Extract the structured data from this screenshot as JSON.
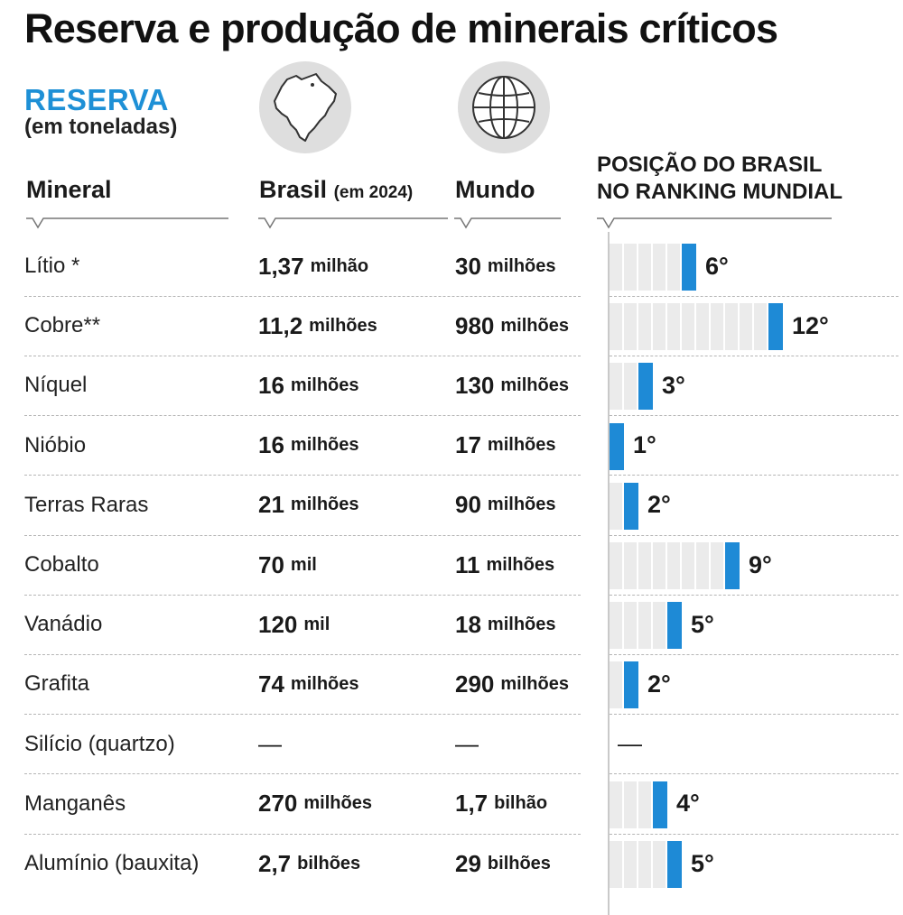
{
  "title": "Reserva e produção de minerais críticos",
  "section": {
    "label": "RESERVA",
    "sublabel": "(em toneladas)"
  },
  "icons": {
    "brasil": "brazil-map-icon",
    "mundo": "globe-icon"
  },
  "headers": {
    "mineral": "Mineral",
    "brasil": "Brasil",
    "brasil_note": "(em 2024)",
    "mundo": "Mundo",
    "rank_line1": "POSIÇÃO DO BRASIL",
    "rank_line2": "NO RANKING MUNDIAL"
  },
  "colors": {
    "accent": "#1e8ad6",
    "bar_bg": "#ebebeb"
  },
  "rows": [
    {
      "mineral": "Lítio *",
      "brasil_num": "1,37",
      "brasil_unit": "milhão",
      "mundo_num": "30",
      "mundo_unit": "milhões",
      "rank": 6,
      "rank_label": "6°"
    },
    {
      "mineral": "Cobre**",
      "brasil_num": "11,2",
      "brasil_unit": "milhões",
      "mundo_num": "980",
      "mundo_unit": "milhões",
      "rank": 12,
      "rank_label": "12°"
    },
    {
      "mineral": "Níquel",
      "brasil_num": "16",
      "brasil_unit": "milhões",
      "mundo_num": "130",
      "mundo_unit": "milhões",
      "rank": 3,
      "rank_label": "3°"
    },
    {
      "mineral": "Nióbio",
      "brasil_num": "16",
      "brasil_unit": "milhões",
      "mundo_num": "17",
      "mundo_unit": "milhões",
      "rank": 1,
      "rank_label": "1°"
    },
    {
      "mineral": "Terras Raras",
      "brasil_num": "21",
      "brasil_unit": "milhões",
      "mundo_num": "90",
      "mundo_unit": "milhões",
      "rank": 2,
      "rank_label": "2°"
    },
    {
      "mineral": "Cobalto",
      "brasil_num": "70",
      "brasil_unit": "mil",
      "mundo_num": "11",
      "mundo_unit": "milhões",
      "rank": 9,
      "rank_label": "9°"
    },
    {
      "mineral": "Vanádio",
      "brasil_num": "120",
      "brasil_unit": "mil",
      "mundo_num": "18",
      "mundo_unit": "milhões",
      "rank": 5,
      "rank_label": "5°"
    },
    {
      "mineral": "Grafita",
      "brasil_num": "74",
      "brasil_unit": "milhões",
      "mundo_num": "290",
      "mundo_unit": "milhões",
      "rank": 2,
      "rank_label": "2°"
    },
    {
      "mineral": "Silício (quartzo)",
      "brasil_num": "—",
      "brasil_unit": "",
      "mundo_num": "—",
      "mundo_unit": "",
      "rank": null,
      "rank_label": "—"
    },
    {
      "mineral": "Manganês",
      "brasil_num": "270",
      "brasil_unit": "milhões",
      "mundo_num": "1,7",
      "mundo_unit": "bilhão",
      "rank": 4,
      "rank_label": "4°"
    },
    {
      "mineral": "Alumínio (bauxita)",
      "brasil_num": "2,7",
      "brasil_unit": "bilhões",
      "mundo_num": "29",
      "mundo_unit": "bilhões",
      "rank": 5,
      "rank_label": "5°"
    }
  ]
}
